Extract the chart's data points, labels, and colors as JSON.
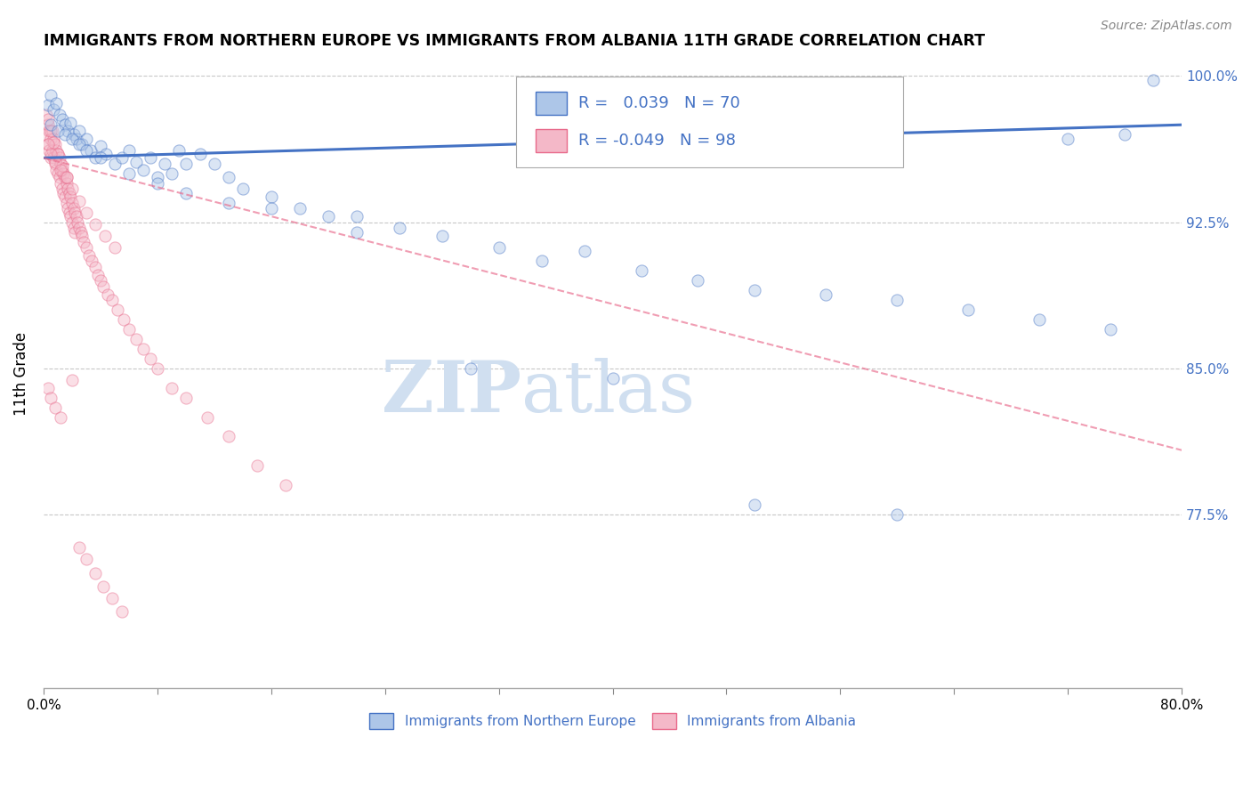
{
  "title": "IMMIGRANTS FROM NORTHERN EUROPE VS IMMIGRANTS FROM ALBANIA 11TH GRADE CORRELATION CHART",
  "source": "Source: ZipAtlas.com",
  "ylabel": "11th Grade",
  "xmin": 0.0,
  "xmax": 0.8,
  "ymin": 0.686,
  "ymax": 1.008,
  "yticks": [
    0.775,
    0.85,
    0.925,
    1.0
  ],
  "ytick_labels": [
    "77.5%",
    "85.0%",
    "92.5%",
    "100.0%"
  ],
  "legend_entries": [
    {
      "label": "Immigrants from Northern Europe",
      "R": 0.039,
      "N": 70
    },
    {
      "label": "Immigrants from Albania",
      "R": -0.049,
      "N": 98
    }
  ],
  "blue_scatter_x": [
    0.003,
    0.005,
    0.007,
    0.009,
    0.011,
    0.013,
    0.015,
    0.017,
    0.019,
    0.021,
    0.023,
    0.025,
    0.027,
    0.03,
    0.033,
    0.036,
    0.04,
    0.044,
    0.05,
    0.055,
    0.06,
    0.065,
    0.07,
    0.075,
    0.08,
    0.085,
    0.09,
    0.095,
    0.1,
    0.11,
    0.12,
    0.13,
    0.14,
    0.16,
    0.18,
    0.2,
    0.22,
    0.25,
    0.28,
    0.32,
    0.35,
    0.38,
    0.42,
    0.46,
    0.5,
    0.55,
    0.6,
    0.65,
    0.7,
    0.75,
    0.005,
    0.01,
    0.015,
    0.02,
    0.025,
    0.03,
    0.04,
    0.06,
    0.08,
    0.1,
    0.13,
    0.16,
    0.22,
    0.3,
    0.4,
    0.5,
    0.6,
    0.72,
    0.78,
    0.76
  ],
  "blue_scatter_y": [
    0.985,
    0.99,
    0.983,
    0.986,
    0.98,
    0.978,
    0.975,
    0.972,
    0.976,
    0.97,
    0.968,
    0.972,
    0.965,
    0.968,
    0.962,
    0.958,
    0.964,
    0.96,
    0.955,
    0.958,
    0.962,
    0.956,
    0.952,
    0.958,
    0.948,
    0.955,
    0.95,
    0.962,
    0.955,
    0.96,
    0.955,
    0.948,
    0.942,
    0.938,
    0.932,
    0.928,
    0.92,
    0.922,
    0.918,
    0.912,
    0.905,
    0.91,
    0.9,
    0.895,
    0.89,
    0.888,
    0.885,
    0.88,
    0.875,
    0.87,
    0.975,
    0.972,
    0.97,
    0.968,
    0.965,
    0.962,
    0.958,
    0.95,
    0.945,
    0.94,
    0.935,
    0.932,
    0.928,
    0.85,
    0.845,
    0.78,
    0.775,
    0.968,
    0.998,
    0.97
  ],
  "pink_scatter_x": [
    0.002,
    0.002,
    0.003,
    0.003,
    0.004,
    0.004,
    0.005,
    0.005,
    0.006,
    0.006,
    0.007,
    0.007,
    0.008,
    0.008,
    0.009,
    0.009,
    0.01,
    0.01,
    0.011,
    0.011,
    0.012,
    0.012,
    0.013,
    0.013,
    0.014,
    0.014,
    0.015,
    0.015,
    0.016,
    0.016,
    0.017,
    0.017,
    0.018,
    0.018,
    0.019,
    0.019,
    0.02,
    0.02,
    0.021,
    0.021,
    0.022,
    0.022,
    0.023,
    0.024,
    0.025,
    0.026,
    0.027,
    0.028,
    0.03,
    0.032,
    0.034,
    0.036,
    0.038,
    0.04,
    0.042,
    0.045,
    0.048,
    0.052,
    0.056,
    0.06,
    0.065,
    0.07,
    0.075,
    0.08,
    0.09,
    0.1,
    0.115,
    0.13,
    0.15,
    0.17,
    0.003,
    0.005,
    0.007,
    0.01,
    0.013,
    0.016,
    0.02,
    0.025,
    0.03,
    0.036,
    0.043,
    0.05,
    0.003,
    0.005,
    0.008,
    0.012,
    0.016,
    0.02,
    0.025,
    0.03,
    0.036,
    0.042,
    0.048,
    0.055,
    0.003,
    0.005,
    0.008,
    0.012
  ],
  "pink_scatter_y": [
    0.98,
    0.97,
    0.975,
    0.965,
    0.972,
    0.962,
    0.968,
    0.958,
    0.972,
    0.962,
    0.968,
    0.958,
    0.965,
    0.955,
    0.962,
    0.952,
    0.96,
    0.95,
    0.958,
    0.948,
    0.955,
    0.945,
    0.952,
    0.942,
    0.95,
    0.94,
    0.948,
    0.938,
    0.945,
    0.935,
    0.942,
    0.932,
    0.94,
    0.93,
    0.938,
    0.928,
    0.935,
    0.925,
    0.932,
    0.922,
    0.93,
    0.92,
    0.928,
    0.925,
    0.922,
    0.92,
    0.918,
    0.915,
    0.912,
    0.908,
    0.905,
    0.902,
    0.898,
    0.895,
    0.892,
    0.888,
    0.885,
    0.88,
    0.875,
    0.87,
    0.865,
    0.86,
    0.855,
    0.85,
    0.84,
    0.835,
    0.825,
    0.815,
    0.8,
    0.79,
    0.978,
    0.972,
    0.966,
    0.96,
    0.954,
    0.948,
    0.942,
    0.936,
    0.93,
    0.924,
    0.918,
    0.912,
    0.965,
    0.96,
    0.956,
    0.952,
    0.948,
    0.844,
    0.758,
    0.752,
    0.745,
    0.738,
    0.732,
    0.725,
    0.84,
    0.835,
    0.83,
    0.825
  ],
  "blue_line_x": [
    0.0,
    0.8
  ],
  "blue_line_y": [
    0.958,
    0.975
  ],
  "pink_line_x": [
    0.0,
    0.8
  ],
  "pink_line_y": [
    0.958,
    0.808
  ],
  "scatter_size": 90,
  "scatter_alpha": 0.45,
  "blue_color": "#4472c4",
  "pink_color": "#e8698a",
  "blue_fill": "#adc6e8",
  "pink_fill": "#f4b8c8",
  "grid_color": "#c8c8c8",
  "watermark_zip": "ZIP",
  "watermark_atlas": "atlas",
  "watermark_color": "#d0dff0"
}
